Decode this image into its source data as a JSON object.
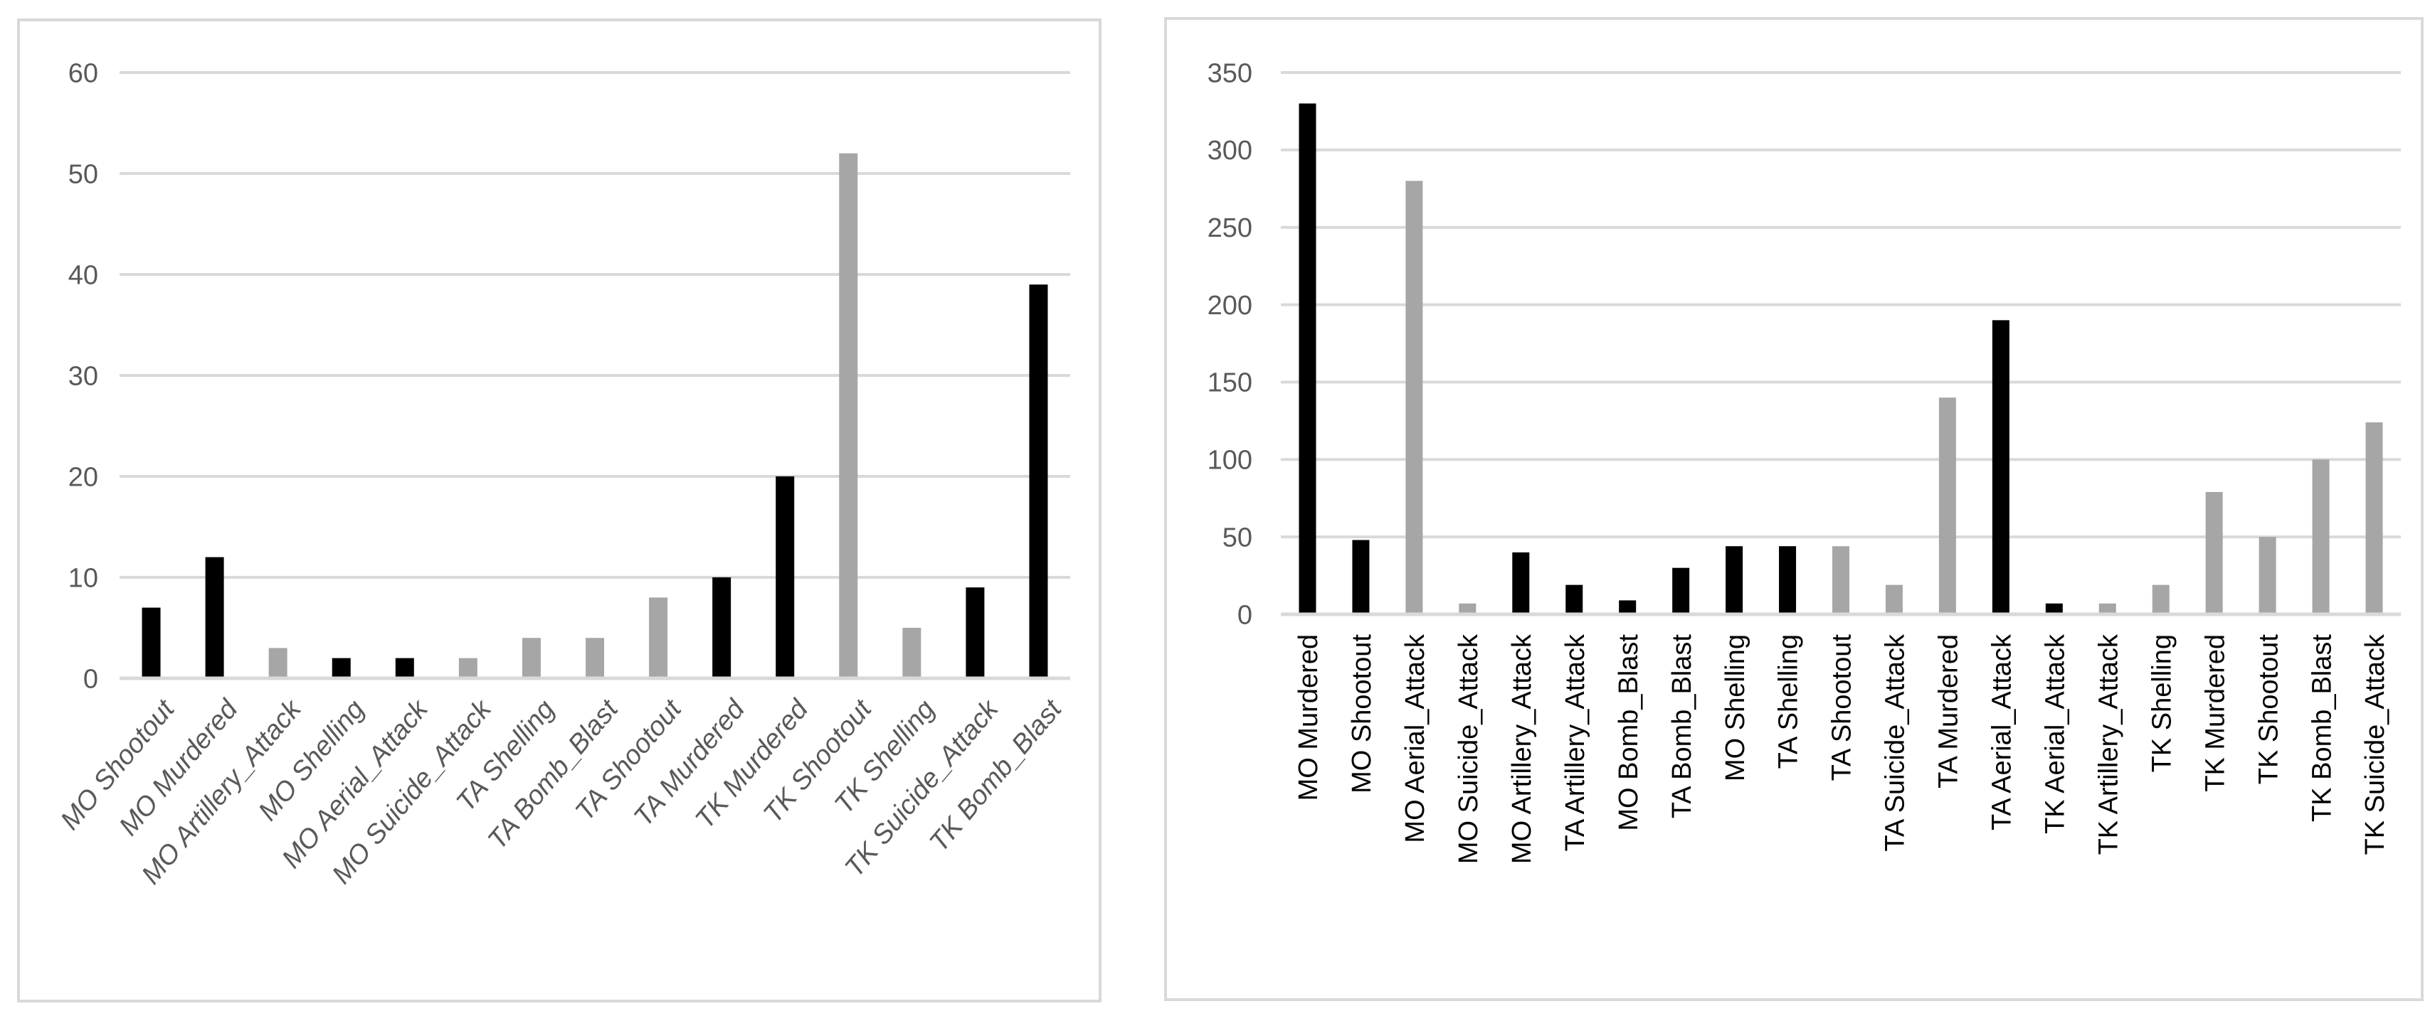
{
  "colors": {
    "black": "#000000",
    "gray": "#a6a6a6",
    "gridline": "#d9d9d9",
    "axis_text": "#595959"
  },
  "chart_data": [
    {
      "type": "bar",
      "title": "",
      "xlabel": "",
      "ylabel": "",
      "ylim": [
        0,
        60
      ],
      "yticks": [
        0,
        10,
        20,
        30,
        40,
        50,
        60
      ],
      "grid": true,
      "tick_label_style": "italic, rotated",
      "categories": [
        "MO Shootout",
        "MO Murdered",
        "MO Artillery_Attack",
        "MO Shelling",
        "MO Aerial_Attack",
        "MO Suicide_Attack",
        "TA Shelling",
        "TA Bomb_Blast",
        "TA Shootout",
        "TA Murdered",
        "TK Murdered",
        "TK Shootout",
        "TK Shelling",
        "TK Suicide_Attack",
        "TK Bomb_Blast"
      ],
      "values": [
        7,
        12,
        3,
        2,
        2,
        2,
        4,
        4,
        8,
        10,
        20,
        52,
        5,
        9,
        39
      ],
      "bar_colors": [
        "black",
        "black",
        "gray",
        "black",
        "black",
        "gray",
        "gray",
        "gray",
        "gray",
        "black",
        "black",
        "gray",
        "gray",
        "black",
        "black"
      ]
    },
    {
      "type": "bar",
      "title": "",
      "xlabel": "",
      "ylabel": "",
      "ylim": [
        0,
        350
      ],
      "yticks": [
        0,
        50,
        100,
        150,
        200,
        250,
        300,
        350
      ],
      "grid": true,
      "tick_label_style": "vertical",
      "categories": [
        "MO Murdered",
        "MO Shootout",
        "MO Aerial_Attack",
        "MO Suicide_Attack",
        "MO Artillery_Attack",
        "TA Artillery_Attack",
        "MO Bomb_Blast",
        "TA Bomb_Blast",
        "MO Shelling",
        "TA Shelling",
        "TA Shootout",
        "TA Suicide_Attack",
        "TA Murdered",
        "TA Aerial_Attack",
        "TK Aerial_Attack",
        "TK Artillery_Attack",
        "TK Shelling",
        "TK Murdered",
        "TK Shootout",
        "TK Bomb_Blast",
        "TK Suicide_Attack"
      ],
      "values": [
        330,
        48,
        280,
        7,
        40,
        19,
        9,
        30,
        44,
        44,
        44,
        19,
        140,
        190,
        7,
        7,
        19,
        79,
        50,
        100,
        124
      ],
      "bar_colors": [
        "black",
        "black",
        "gray",
        "gray",
        "black",
        "black",
        "black",
        "black",
        "black",
        "black",
        "gray",
        "gray",
        "gray",
        "black",
        "black",
        "gray",
        "gray",
        "gray",
        "gray",
        "gray",
        "gray"
      ]
    }
  ]
}
